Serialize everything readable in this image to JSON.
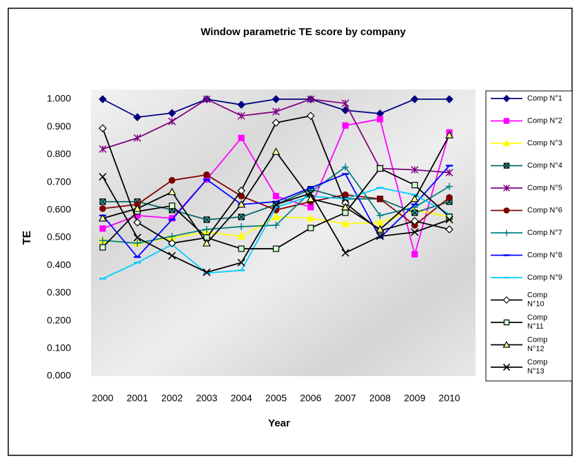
{
  "chart_data": {
    "type": "line",
    "title": "Window parametric TE score by company",
    "x_label": "Year",
    "y_label": "TE",
    "categories": [
      "2000",
      "2001",
      "2002",
      "2003",
      "2004",
      "2005",
      "2006",
      "2007",
      "2008",
      "2009",
      "2010"
    ],
    "ylim": [
      0,
      1
    ],
    "yticks": [
      {
        "value": 0,
        "label": "0.000"
      },
      {
        "value": 0.1,
        "label": "0.100"
      },
      {
        "value": 0.2,
        "label": "0.200"
      },
      {
        "value": 0.3,
        "label": "0.300"
      },
      {
        "value": 0.4,
        "label": "0.400"
      },
      {
        "value": 0.5,
        "label": "0.500"
      },
      {
        "value": 0.6,
        "label": "0.600"
      },
      {
        "value": 0.7,
        "label": "0.700"
      },
      {
        "value": 0.8,
        "label": "0.800"
      },
      {
        "value": 0.9,
        "label": "0.900"
      },
      {
        "value": 1,
        "label": "1.000"
      }
    ],
    "legend": "right",
    "series": [
      {
        "name": "Comp N°1",
        "color": "#000080",
        "marker": "diamond",
        "marker_fill": "#000080",
        "values": [
          1.0,
          0.935,
          0.95,
          1.0,
          0.98,
          1.0,
          1.0,
          0.96,
          0.948,
          1.0,
          1.0
        ]
      },
      {
        "name": "Comp N°2",
        "color": "#ff00ff",
        "marker": "square",
        "marker_fill": "#ff00ff",
        "values": [
          0.533,
          0.58,
          0.57,
          0.71,
          0.86,
          0.65,
          0.61,
          0.905,
          0.928,
          0.44,
          0.88
        ]
      },
      {
        "name": "Comp N°3",
        "color": "#ffff00",
        "marker": "triangle",
        "marker_fill": "#ffff00",
        "values": [
          0.49,
          0.48,
          0.5,
          0.52,
          0.505,
          0.575,
          0.57,
          0.55,
          0.555,
          0.6,
          0.575
        ]
      },
      {
        "name": "Comp N°4",
        "color": "#006666",
        "marker": "xsquare",
        "marker_fill": "#33cccc",
        "values": [
          0.63,
          0.63,
          0.6,
          0.565,
          0.575,
          0.62,
          0.675,
          0.64,
          0.64,
          0.59,
          0.63
        ]
      },
      {
        "name": "Comp N°5",
        "color": "#800080",
        "marker": "star",
        "marker_fill": "#800080",
        "values": [
          0.82,
          0.86,
          0.92,
          1.0,
          0.94,
          0.955,
          1.0,
          0.985,
          0.75,
          0.745,
          0.735
        ]
      },
      {
        "name": "Comp N°6",
        "color": "#800000",
        "marker": "circle",
        "marker_fill": "#800000",
        "values": [
          0.605,
          0.62,
          0.707,
          0.727,
          0.65,
          0.6,
          0.63,
          0.655,
          0.64,
          0.545,
          0.645
        ]
      },
      {
        "name": "Comp N°7",
        "color": "#008080",
        "marker": "plus",
        "marker_fill": "#008080",
        "values": [
          0.49,
          0.48,
          0.505,
          0.53,
          0.54,
          0.545,
          0.665,
          0.755,
          0.58,
          0.61,
          0.685
        ]
      },
      {
        "name": "Comp N°8",
        "color": "#0000ff",
        "marker": "dash",
        "marker_fill": "#0000ff",
        "values": [
          0.58,
          0.43,
          0.565,
          0.71,
          0.62,
          0.63,
          0.68,
          0.73,
          0.5,
          0.62,
          0.76
        ]
      },
      {
        "name": "Comp N°9",
        "color": "#00ccff",
        "marker": "dash",
        "marker_fill": "#00ccff",
        "values": [
          0.352,
          0.41,
          0.475,
          0.372,
          0.382,
          0.61,
          0.65,
          0.64,
          0.68,
          0.655,
          0.585
        ]
      },
      {
        "name": "Comp N°10",
        "color": "#000000",
        "marker": "diamond",
        "marker_fill": "#ffffff",
        "values": [
          0.895,
          0.555,
          0.48,
          0.5,
          0.67,
          0.915,
          0.94,
          0.625,
          0.525,
          0.56,
          0.53
        ]
      },
      {
        "name": "Comp N°11",
        "color": "#000000",
        "marker": "square",
        "marker_fill": "#ccffcc",
        "values": [
          0.465,
          0.595,
          0.615,
          0.5,
          0.46,
          0.46,
          0.535,
          0.59,
          0.75,
          0.69,
          0.575
        ]
      },
      {
        "name": "Comp N°12",
        "color": "#000000",
        "marker": "triangle",
        "marker_fill": "#ffff99",
        "values": [
          0.57,
          0.605,
          0.665,
          0.48,
          0.62,
          0.81,
          0.64,
          0.61,
          0.53,
          0.64,
          0.87
        ]
      },
      {
        "name": "Comp N°13",
        "color": "#000000",
        "marker": "x",
        "marker_fill": "#000000",
        "values": [
          0.72,
          0.5,
          0.435,
          0.375,
          0.41,
          0.62,
          0.66,
          0.445,
          0.505,
          0.52,
          0.565
        ]
      }
    ]
  }
}
